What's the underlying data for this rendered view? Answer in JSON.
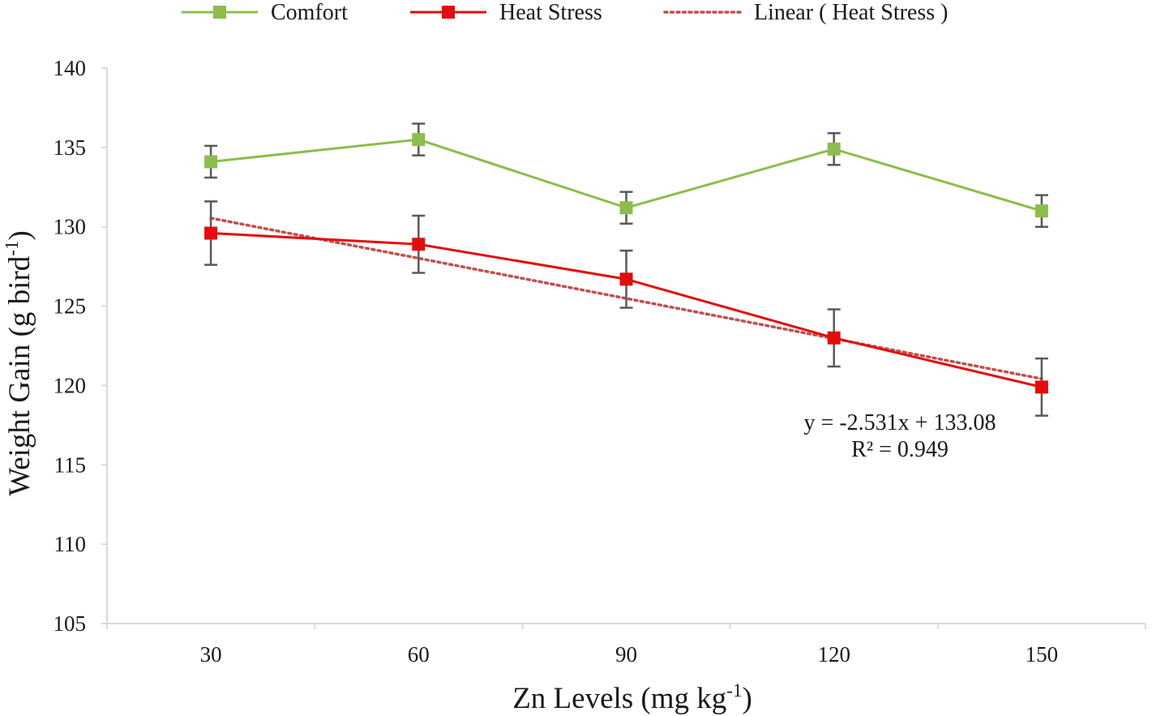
{
  "chart_data": {
    "type": "line",
    "title": "",
    "xlabel": "Zn Levels (mg kg",
    "xlabel_sup": "-1",
    "xlabel_tail": ")",
    "ylabel": "Weight Gain (g bird",
    "ylabel_sup": "-1",
    "ylabel_tail": ")",
    "categories": [
      "30",
      "60",
      "90",
      "120",
      "150"
    ],
    "ylim": [
      105,
      140
    ],
    "y_ticks": [
      "105",
      "110",
      "115",
      "120",
      "125",
      "130",
      "135",
      "140"
    ],
    "series": [
      {
        "name": "Comfort",
        "color": "#8cbd4e",
        "values": [
          134.1,
          135.5,
          131.2,
          134.9,
          131.0
        ],
        "err": [
          1.0,
          1.0,
          1.0,
          1.0,
          1.0
        ]
      },
      {
        "name": "Heat Stress",
        "color": "#e30d0d",
        "values": [
          129.6,
          128.9,
          126.7,
          123.0,
          119.9
        ],
        "err": [
          2.0,
          1.8,
          1.8,
          1.8,
          1.8
        ]
      }
    ],
    "trendline": {
      "name": "Linear ( Heat Stress )",
      "color": "#c0504d",
      "slope": -2.531,
      "intercept": 133.08,
      "equation": "y = -2.531x + 133.08",
      "r2": "R² = 0.949"
    },
    "error_bar_color": "#595959",
    "legend_position": "top"
  }
}
